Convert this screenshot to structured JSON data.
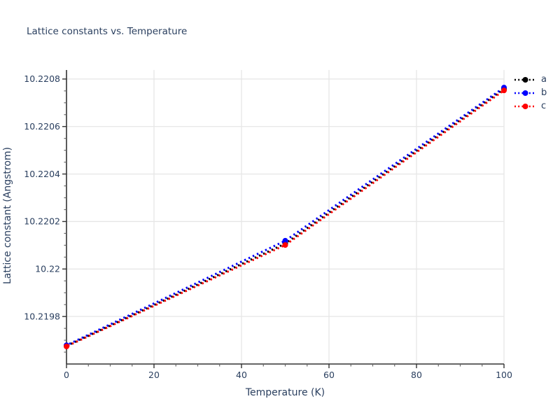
{
  "chart_data": {
    "type": "line",
    "title": "Lattice constants vs. Temperature",
    "xlabel": "Temperature (K)",
    "ylabel": "Lattice constant (Angstrom)",
    "x": [
      0,
      50,
      100
    ],
    "series": [
      {
        "name": "a",
        "color": "#000000",
        "values": [
          10.219676,
          10.220107,
          10.220758
        ]
      },
      {
        "name": "b",
        "color": "#0000ff",
        "values": [
          10.219679,
          10.220119,
          10.220764
        ]
      },
      {
        "name": "c",
        "color": "#ff0000",
        "values": [
          10.219674,
          10.220101,
          10.220752
        ]
      }
    ],
    "xlim": [
      0,
      100
    ],
    "ylim": [
      10.2196,
      10.220838
    ],
    "xticks": [
      0,
      20,
      40,
      60,
      80,
      100
    ],
    "xtick_labels": [
      "0",
      "20",
      "40",
      "60",
      "80",
      "100"
    ],
    "yticks": [
      10.2198,
      10.22,
      10.2202,
      10.2204,
      10.2206,
      10.2208
    ],
    "ytick_labels": [
      "10.2198",
      "10.22",
      "10.2202",
      "10.2204",
      "10.2206",
      "10.2208"
    ],
    "x_minor_step": 5,
    "y_minor_step": 5e-05,
    "line_style": "dotted",
    "marker": "circle",
    "grid": true,
    "legend_position": "top-right"
  },
  "style": {
    "text_color": "#2a3f5f",
    "grid_color": "#e6e6e6",
    "axis_color": "#333333",
    "major_tick_color": "#333333",
    "minor_tick_color": "#666666",
    "background": "#ffffff"
  }
}
